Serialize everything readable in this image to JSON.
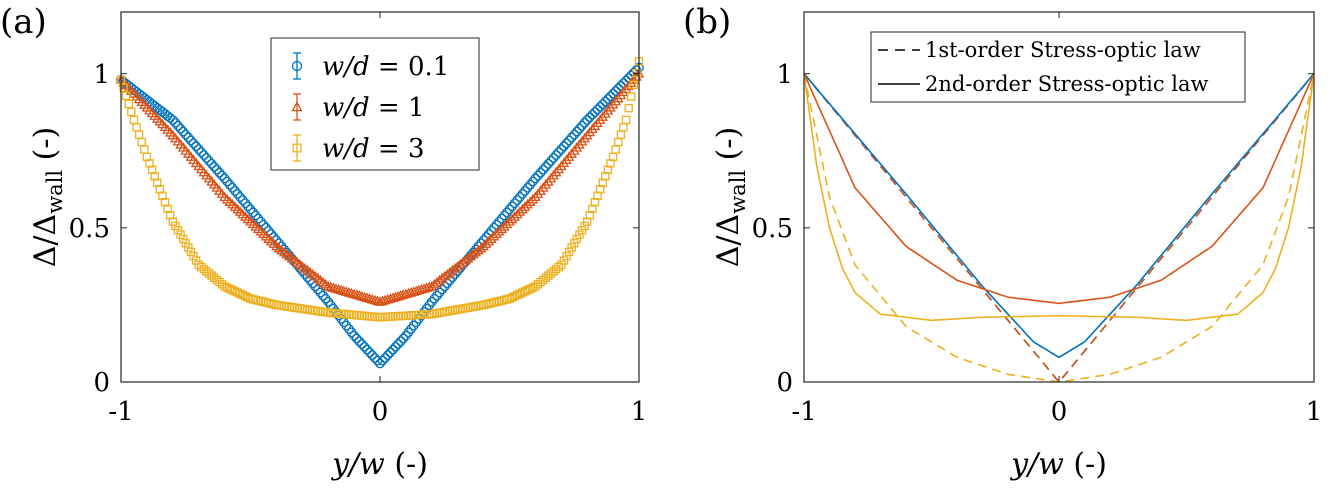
{
  "panels": {
    "a": {
      "label": "(a)",
      "xlabel": {
        "var": "y/w",
        "unit": " (-)"
      },
      "ylabel": {
        "main": "Δ/Δ",
        "sub": "wall",
        "unit": " (-)"
      },
      "xticks": [
        "-1",
        "0",
        "1"
      ],
      "yticks": [
        "0",
        "0.5",
        "1"
      ],
      "legend": [
        {
          "math": "w/d",
          "eq": " = 0.1",
          "color": "#0072BD",
          "marker": "circle"
        },
        {
          "math": "w/d",
          "eq": " = 1",
          "color": "#D95319",
          "marker": "triangle"
        },
        {
          "math": "w/d",
          "eq": " = 3",
          "color": "#EDB120",
          "marker": "square"
        }
      ]
    },
    "b": {
      "label": "(b)",
      "xlabel": {
        "var": "y/w",
        "unit": " (-)"
      },
      "ylabel": {
        "main": "Δ/Δ",
        "sub": "wall",
        "unit": " (-)"
      },
      "xticks": [
        "-1",
        "0",
        "1"
      ],
      "yticks": [
        "0",
        "0.5",
        "1"
      ],
      "legend": [
        {
          "text": "1st-order Stress-optic law",
          "style": "dashed"
        },
        {
          "text": "2nd-order Stress-optic law",
          "style": "solid"
        }
      ]
    }
  },
  "chart_data": [
    {
      "type": "scatter",
      "panel": "a",
      "xlim": [
        -1,
        1
      ],
      "ylim": [
        0,
        1.2
      ],
      "legend_position": "top-center",
      "series": [
        {
          "name": "w/d = 0.1",
          "color": "#0072BD",
          "marker": "circle",
          "x": [
            -1,
            -0.8,
            -0.6,
            -0.4,
            -0.2,
            -0.1,
            0,
            0.1,
            0.2,
            0.4,
            0.6,
            0.8,
            1
          ],
          "y": [
            0.98,
            0.85,
            0.66,
            0.46,
            0.26,
            0.15,
            0.06,
            0.15,
            0.26,
            0.46,
            0.66,
            0.85,
            1.02
          ]
        },
        {
          "name": "w/d = 1",
          "color": "#D95319",
          "marker": "triangle",
          "x": [
            -1,
            -0.8,
            -0.6,
            -0.4,
            -0.2,
            0,
            0.2,
            0.4,
            0.6,
            0.8,
            1
          ],
          "y": [
            0.98,
            0.8,
            0.6,
            0.44,
            0.31,
            0.26,
            0.31,
            0.44,
            0.6,
            0.8,
            1.0
          ]
        },
        {
          "name": "w/d = 3",
          "color": "#EDB120",
          "marker": "square",
          "x": [
            -1,
            -0.95,
            -0.9,
            -0.8,
            -0.7,
            -0.6,
            -0.5,
            -0.4,
            -0.2,
            0,
            0.2,
            0.4,
            0.5,
            0.6,
            0.7,
            0.8,
            0.9,
            0.95,
            1
          ],
          "y": [
            0.98,
            0.85,
            0.73,
            0.52,
            0.38,
            0.31,
            0.27,
            0.25,
            0.225,
            0.21,
            0.22,
            0.25,
            0.27,
            0.31,
            0.38,
            0.52,
            0.73,
            0.85,
            1.04
          ]
        }
      ]
    },
    {
      "type": "line",
      "panel": "b",
      "xlim": [
        -1,
        1
      ],
      "ylim": [
        0,
        1.2
      ],
      "legend_position": "top-right",
      "series": [
        {
          "color": "#0072BD",
          "style": "dashed",
          "x": [
            -1,
            0,
            1
          ],
          "y": [
            1,
            0,
            1
          ]
        },
        {
          "color": "#D95319",
          "style": "dashed",
          "x": [
            -1,
            -0.6,
            -0.3,
            0,
            0.3,
            0.6,
            1
          ],
          "y": [
            1,
            0.6,
            0.3,
            0,
            0.3,
            0.6,
            1
          ]
        },
        {
          "color": "#EDB120",
          "style": "dashed",
          "x": [
            -1,
            -0.9,
            -0.8,
            -0.6,
            -0.4,
            -0.2,
            0,
            0.2,
            0.4,
            0.6,
            0.8,
            0.9,
            1
          ],
          "y": [
            1,
            0.6,
            0.38,
            0.18,
            0.08,
            0.025,
            0,
            0.025,
            0.08,
            0.18,
            0.38,
            0.6,
            1
          ]
        },
        {
          "color": "#0072BD",
          "style": "solid",
          "x": [
            -1,
            -0.6,
            -0.3,
            -0.1,
            0,
            0.1,
            0.3,
            0.6,
            1
          ],
          "y": [
            1,
            0.61,
            0.31,
            0.13,
            0.08,
            0.13,
            0.31,
            0.61,
            1
          ]
        },
        {
          "color": "#D95319",
          "style": "solid",
          "x": [
            -1,
            -0.8,
            -0.6,
            -0.4,
            -0.2,
            0,
            0.2,
            0.4,
            0.6,
            0.8,
            1
          ],
          "y": [
            1,
            0.63,
            0.44,
            0.33,
            0.275,
            0.255,
            0.275,
            0.33,
            0.44,
            0.63,
            1
          ]
        },
        {
          "color": "#EDB120",
          "style": "solid",
          "x": [
            -1,
            -0.95,
            -0.9,
            -0.85,
            -0.8,
            -0.7,
            -0.5,
            -0.3,
            0,
            0.3,
            0.5,
            0.7,
            0.8,
            0.85,
            0.9,
            0.95,
            1
          ],
          "y": [
            1,
            0.7,
            0.5,
            0.37,
            0.29,
            0.22,
            0.2,
            0.21,
            0.215,
            0.21,
            0.2,
            0.22,
            0.29,
            0.37,
            0.5,
            0.7,
            1
          ]
        }
      ]
    }
  ]
}
